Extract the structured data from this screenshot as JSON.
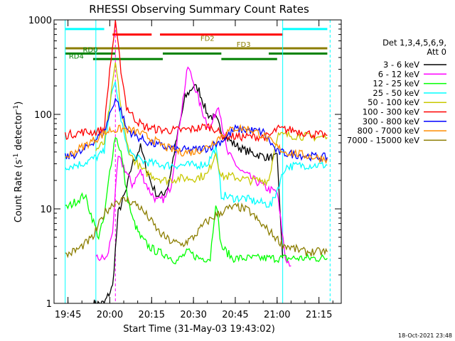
{
  "chart_data": {
    "type": "line",
    "title": "RHESSI Observing Summary Count Rates",
    "xlabel": "Start Time (31-May-03 19:43:02)",
    "ylabel_main": "Count Rate (s",
    "ylabel_sup1": "-1",
    "ylabel_mid": " detector",
    "ylabel_sup2": "-1",
    "ylabel_end": ")",
    "yscale": "log",
    "ylim": [
      1,
      1000
    ],
    "xlim": [
      "19:40",
      "21:23"
    ],
    "x_ticks": [
      "19:45",
      "20:00",
      "20:15",
      "20:30",
      "20:45",
      "21:00",
      "21:15"
    ],
    "y_ticks": [
      "1",
      "10",
      "100",
      "1000"
    ],
    "legend": {
      "header1": "Det 1,3,4,5,6,9,",
      "header2": "Att 0"
    },
    "series": [
      {
        "name": "3 - 6 keV",
        "color": "#000000",
        "x": [
          "19:54",
          "19:58",
          "20:01",
          "20:03",
          "20:06",
          "20:08",
          "20:11",
          "20:13",
          "20:15",
          "20:17",
          "20:19",
          "20:21",
          "20:24",
          "20:27",
          "20:30",
          "20:32",
          "20:35",
          "20:38",
          "20:41",
          "20:44",
          "20:48",
          "20:52",
          "20:57",
          "21:00",
          "21:02"
        ],
        "y": [
          1,
          1,
          1.5,
          9,
          16,
          30,
          45,
          28,
          18,
          14,
          14,
          18,
          55,
          150,
          200,
          180,
          100,
          90,
          60,
          50,
          42,
          38,
          35,
          35,
          3
        ]
      },
      {
        "name": "6 - 12 keV",
        "color": "#ff00ff",
        "x": [
          "19:55",
          "19:59",
          "20:01",
          "20:03",
          "20:05",
          "20:08",
          "20:11",
          "20:14",
          "20:17",
          "20:20",
          "20:22",
          "20:25",
          "20:28",
          "20:30",
          "20:33",
          "20:36",
          "20:39",
          "20:42",
          "20:47",
          "20:52",
          "20:57",
          "21:00",
          "21:03",
          "21:05"
        ],
        "y": [
          3,
          3,
          6,
          35,
          28,
          18,
          25,
          16,
          12,
          13,
          18,
          80,
          320,
          220,
          110,
          70,
          130,
          40,
          25,
          20,
          16,
          15,
          3,
          2.5
        ]
      },
      {
        "name": "12 - 25 keV",
        "color": "#00ff00",
        "x": [
          "19:44",
          "19:51",
          "19:56",
          "19:58",
          "20:00",
          "20:02",
          "20:04",
          "20:06",
          "20:08",
          "20:11",
          "20:14",
          "20:17",
          "20:20",
          "20:24",
          "20:28",
          "20:32",
          "20:36",
          "20:38",
          "20:40",
          "20:44",
          "20:48",
          "20:55",
          "21:00",
          "21:05",
          "21:10",
          "21:18"
        ],
        "y": [
          10,
          14,
          5,
          8,
          25,
          60,
          40,
          15,
          8,
          5,
          4,
          3.5,
          3.3,
          2.8,
          3.5,
          3,
          3,
          12,
          4,
          3,
          3,
          3,
          3,
          3,
          3,
          3
        ]
      },
      {
        "name": "25 - 50 keV",
        "color": "#00ffff",
        "x": [
          "19:44",
          "19:50",
          "19:55",
          "19:58",
          "20:00",
          "20:02",
          "20:04",
          "20:06",
          "20:09",
          "20:12",
          "20:16",
          "20:20",
          "20:25",
          "20:30",
          "20:35",
          "20:38",
          "20:40",
          "20:44",
          "20:48",
          "20:52",
          "20:58",
          "21:03",
          "21:10",
          "21:18"
        ],
        "y": [
          28,
          30,
          35,
          40,
          130,
          220,
          90,
          45,
          35,
          32,
          30,
          29,
          29,
          29,
          30,
          45,
          14,
          13,
          13,
          12,
          11,
          28,
          29,
          29
        ]
      },
      {
        "name": "50 - 100 keV",
        "color": "#c8c800",
        "x": [
          "19:55",
          "19:58",
          "20:00",
          "20:02",
          "20:04",
          "20:06",
          "20:08",
          "20:12",
          "20:16",
          "20:20",
          "20:25",
          "20:30",
          "20:35",
          "20:38",
          "20:40",
          "20:44",
          "20:50",
          "20:57",
          "21:00",
          "21:05",
          "21:12",
          "21:18"
        ],
        "y": [
          42,
          50,
          120,
          350,
          120,
          50,
          35,
          25,
          22,
          20,
          21,
          21,
          23,
          40,
          22,
          22,
          20,
          20,
          60,
          60,
          58,
          57
        ]
      },
      {
        "name": "100 - 300 keV",
        "color": "#ff0000",
        "x": [
          "19:44",
          "19:50",
          "19:55",
          "19:58",
          "20:00",
          "20:02",
          "20:04",
          "20:06",
          "20:09",
          "20:12",
          "20:16",
          "20:20",
          "20:25",
          "20:30",
          "20:35",
          "20:38",
          "20:40",
          "20:45",
          "20:50",
          "20:57",
          "21:00",
          "21:06",
          "21:12",
          "21:18"
        ],
        "y": [
          60,
          65,
          65,
          70,
          300,
          900,
          300,
          120,
          90,
          75,
          70,
          68,
          68,
          70,
          75,
          70,
          60,
          58,
          58,
          58,
          70,
          68,
          62,
          60
        ]
      },
      {
        "name": "300 - 800 keV",
        "color": "#0000ff",
        "x": [
          "19:44",
          "19:50",
          "19:55",
          "19:58",
          "20:00",
          "20:02",
          "20:04",
          "20:06",
          "20:09",
          "20:14",
          "20:20",
          "20:25",
          "20:30",
          "20:35",
          "20:40",
          "20:45",
          "20:50",
          "20:55",
          "21:00",
          "21:05",
          "21:12",
          "21:18"
        ],
        "y": [
          35,
          40,
          55,
          65,
          100,
          150,
          110,
          70,
          60,
          50,
          45,
          42,
          42,
          44,
          52,
          70,
          68,
          65,
          40,
          38,
          36,
          35
        ]
      },
      {
        "name": "800 - 7000 keV",
        "color": "#ff8c00",
        "x": [
          "19:44",
          "19:50",
          "19:55",
          "20:00",
          "20:05",
          "20:10",
          "20:15",
          "20:20",
          "20:25",
          "20:30",
          "20:35",
          "20:40",
          "20:45",
          "20:50",
          "20:55",
          "21:00",
          "21:03",
          "21:08",
          "21:14",
          "21:18"
        ],
        "y": [
          35,
          45,
          55,
          68,
          70,
          65,
          55,
          45,
          40,
          40,
          45,
          60,
          72,
          70,
          60,
          45,
          40,
          38,
          35,
          34
        ]
      },
      {
        "name": "7000 - 15000 keV",
        "color": "#8b7d00",
        "x": [
          "19:44",
          "19:49",
          "19:54",
          "19:58",
          "20:02",
          "20:06",
          "20:10",
          "20:14",
          "20:18",
          "20:22",
          "20:26",
          "20:30",
          "20:34",
          "20:38",
          "20:42",
          "20:46",
          "20:50",
          "20:54",
          "20:58",
          "21:02",
          "21:06",
          "21:10",
          "21:14",
          "21:18"
        ],
        "y": [
          3.2,
          3.8,
          5,
          9,
          12,
          12.5,
          11,
          8,
          5.5,
          4.5,
          4.2,
          5,
          7,
          8.5,
          10,
          10.5,
          9.5,
          7,
          5.5,
          4.2,
          3.8,
          3.5,
          3.5,
          3.5
        ]
      }
    ],
    "bars": [
      {
        "color": "#00ffff",
        "y": 800,
        "segments": [
          [
            "19:44",
            "19:58"
          ],
          [
            "21:02",
            "21:18"
          ]
        ]
      },
      {
        "color": "#ff0000",
        "y": 700,
        "segments": [
          [
            "20:01",
            "20:15"
          ],
          [
            "20:18",
            "21:02"
          ]
        ]
      },
      {
        "color": "#8b7d00",
        "y": 500,
        "segments": [
          [
            "19:44",
            "21:18"
          ]
        ]
      },
      {
        "color": "#008000",
        "y": 440,
        "segments": [
          [
            "19:44",
            "20:02"
          ],
          [
            "20:19",
            "20:40"
          ],
          [
            "20:57",
            "21:18"
          ]
        ]
      },
      {
        "color": "#008000",
        "y": 385,
        "segments": [
          [
            "19:54",
            "20:19"
          ],
          [
            "20:40",
            "21:00"
          ]
        ]
      }
    ],
    "bar_labels": [
      {
        "text": "FD2",
        "color": "#8b7d00",
        "x": "20:35",
        "y": 600
      },
      {
        "text": "FD3",
        "color": "#8b7d00",
        "x": "20:48",
        "y": 520
      },
      {
        "text": "RD0",
        "color": "#008000",
        "x": "19:53",
        "y": 455
      },
      {
        "text": "RD4",
        "color": "#008000",
        "x": "19:48",
        "y": 390
      }
    ],
    "vlines": [
      {
        "x": "19:44",
        "color": "#00ffff",
        "dashed": false
      },
      {
        "x": "19:55",
        "color": "#00ffff",
        "dashed": false
      },
      {
        "x": "20:02",
        "color": "#ff00ff",
        "dashed": true
      },
      {
        "x": "21:02",
        "color": "#00ffff",
        "dashed": false
      },
      {
        "x": "21:19",
        "color": "#00ffff",
        "dashed": true
      }
    ]
  },
  "timestamp": "18-Oct-2021 23:48"
}
